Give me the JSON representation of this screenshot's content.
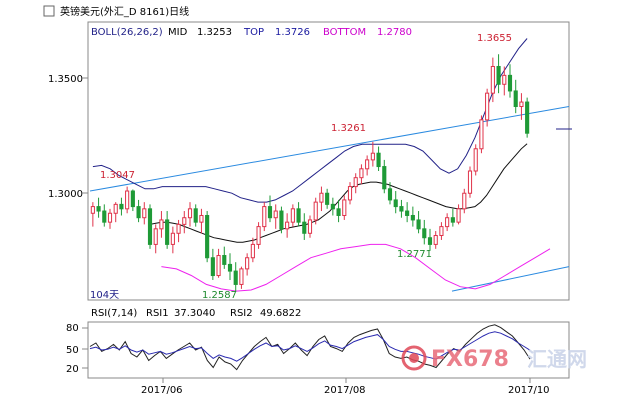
{
  "header": {
    "instrument": "英镑美元(外汇_D 8161)日线",
    "boll": {
      "label": "BOLL(26,26,2)",
      "mid_label": "MID",
      "mid": "1.3253",
      "top_label": "TOP",
      "top": "1.3726",
      "bottom_label": "BOTTOM",
      "bottom": "1.2780"
    }
  },
  "rsi_header": {
    "label": "RSI(7,14)",
    "rsi1_label": "RSI1",
    "rsi1": "37.3040",
    "rsi2_label": "RSI2",
    "rsi2": "49.6822"
  },
  "watermark": {
    "text": "FX678",
    "cn": "汇通网"
  },
  "annotations": {
    "a1": "1.3047",
    "a2": "1.3261",
    "a3": "1.3655",
    "a4": "1.2771",
    "a5": "1.2587",
    "days": "104天"
  },
  "colors": {
    "up": "#e0334a",
    "down": "#1f9a37",
    "mid": "#111111",
    "top": "#222288",
    "bottom": "#ee22ee",
    "trend": "#2a8ae0",
    "rsi1": "#222222",
    "rsi2": "#2a2ab0",
    "boll_title": "#222288",
    "top_text": "#1a1aa0",
    "bottom_text": "#cc00cc",
    "ann_red": "#cc2233",
    "ann_green": "#1f8a2e"
  },
  "chart_data": [
    {
      "type": "candlestick",
      "title": "英镑美元(外汇_D 8161)日线",
      "y_ticks": [
        "1.3500",
        "1.3000"
      ],
      "ylim": [
        1.255,
        1.38
      ],
      "x_tick_labels": [
        "2017/06",
        "2017/08",
        "2017/10"
      ],
      "ohlc": [
        [
          1.294,
          1.299,
          1.288,
          1.297
        ],
        [
          1.297,
          1.301,
          1.292,
          1.295
        ],
        [
          1.295,
          1.298,
          1.288,
          1.29
        ],
        [
          1.29,
          1.296,
          1.287,
          1.294
        ],
        [
          1.294,
          1.299,
          1.29,
          1.298
        ],
        [
          1.298,
          1.301,
          1.293,
          1.296
        ],
        [
          1.296,
          1.306,
          1.294,
          1.304
        ],
        [
          1.304,
          1.3047,
          1.295,
          1.297
        ],
        [
          1.297,
          1.3,
          1.29,
          1.292
        ],
        [
          1.292,
          1.299,
          1.289,
          1.296
        ],
        [
          1.296,
          1.298,
          1.278,
          1.28
        ],
        [
          1.28,
          1.289,
          1.276,
          1.287
        ],
        [
          1.287,
          1.295,
          1.283,
          1.291
        ],
        [
          1.291,
          1.295,
          1.278,
          1.28
        ],
        [
          1.28,
          1.288,
          1.276,
          1.285
        ],
        [
          1.285,
          1.291,
          1.281,
          1.289
        ],
        [
          1.289,
          1.295,
          1.285,
          1.292
        ],
        [
          1.292,
          1.299,
          1.288,
          1.296
        ],
        [
          1.296,
          1.298,
          1.288,
          1.29
        ],
        [
          1.29,
          1.296,
          1.285,
          1.293
        ],
        [
          1.293,
          1.295,
          1.272,
          1.274
        ],
        [
          1.274,
          1.278,
          1.264,
          1.266
        ],
        [
          1.266,
          1.278,
          1.265,
          1.275
        ],
        [
          1.275,
          1.279,
          1.269,
          1.271
        ],
        [
          1.271,
          1.276,
          1.264,
          1.268
        ],
        [
          1.268,
          1.272,
          1.2587,
          1.262
        ],
        [
          1.262,
          1.27,
          1.26,
          1.269
        ],
        [
          1.269,
          1.276,
          1.266,
          1.274
        ],
        [
          1.274,
          1.283,
          1.272,
          1.28
        ],
        [
          1.28,
          1.29,
          1.278,
          1.288
        ],
        [
          1.288,
          1.299,
          1.286,
          1.297
        ],
        [
          1.297,
          1.302,
          1.29,
          1.292
        ],
        [
          1.292,
          1.298,
          1.287,
          1.295
        ],
        [
          1.295,
          1.297,
          1.285,
          1.287
        ],
        [
          1.287,
          1.294,
          1.283,
          1.29
        ],
        [
          1.29,
          1.298,
          1.288,
          1.296
        ],
        [
          1.296,
          1.299,
          1.288,
          1.29
        ],
        [
          1.29,
          1.294,
          1.282,
          1.285
        ],
        [
          1.285,
          1.293,
          1.283,
          1.291
        ],
        [
          1.291,
          1.301,
          1.289,
          1.299
        ],
        [
          1.299,
          1.306,
          1.295,
          1.303
        ],
        [
          1.303,
          1.305,
          1.296,
          1.298
        ],
        [
          1.298,
          1.301,
          1.293,
          1.296
        ],
        [
          1.296,
          1.3,
          1.29,
          1.293
        ],
        [
          1.293,
          1.302,
          1.291,
          1.3
        ],
        [
          1.3,
          1.308,
          1.298,
          1.306
        ],
        [
          1.306,
          1.312,
          1.303,
          1.31
        ],
        [
          1.31,
          1.316,
          1.307,
          1.314
        ],
        [
          1.314,
          1.32,
          1.311,
          1.318
        ],
        [
          1.318,
          1.3261,
          1.315,
          1.321
        ],
        [
          1.321,
          1.324,
          1.313,
          1.315
        ],
        [
          1.315,
          1.318,
          1.303,
          1.305
        ],
        [
          1.305,
          1.308,
          1.298,
          1.3
        ],
        [
          1.3,
          1.304,
          1.294,
          1.297
        ],
        [
          1.297,
          1.3,
          1.292,
          1.295
        ],
        [
          1.295,
          1.299,
          1.29,
          1.293
        ],
        [
          1.293,
          1.297,
          1.288,
          1.291
        ],
        [
          1.291,
          1.295,
          1.285,
          1.287
        ],
        [
          1.287,
          1.291,
          1.28,
          1.283
        ],
        [
          1.283,
          1.287,
          1.2771,
          1.28
        ],
        [
          1.28,
          1.286,
          1.278,
          1.284
        ],
        [
          1.284,
          1.29,
          1.282,
          1.288
        ],
        [
          1.288,
          1.294,
          1.286,
          1.292
        ],
        [
          1.292,
          1.296,
          1.288,
          1.29
        ],
        [
          1.29,
          1.298,
          1.289,
          1.296
        ],
        [
          1.296,
          1.305,
          1.294,
          1.303
        ],
        [
          1.303,
          1.315,
          1.301,
          1.313
        ],
        [
          1.313,
          1.325,
          1.311,
          1.323
        ],
        [
          1.323,
          1.338,
          1.321,
          1.336
        ],
        [
          1.336,
          1.35,
          1.333,
          1.348
        ],
        [
          1.348,
          1.364,
          1.344,
          1.36
        ],
        [
          1.36,
          1.3655,
          1.348,
          1.352
        ],
        [
          1.352,
          1.36,
          1.347,
          1.356
        ],
        [
          1.356,
          1.361,
          1.346,
          1.349
        ],
        [
          1.349,
          1.354,
          1.339,
          1.342
        ],
        [
          1.342,
          1.348,
          1.336,
          1.344
        ],
        [
          1.344,
          1.346,
          1.328,
          1.33
        ]
      ],
      "mid": [
        1.289,
        1.2895,
        1.29,
        1.29,
        1.2895,
        1.289,
        1.288,
        1.287,
        1.286,
        1.285,
        1.284,
        1.283,
        1.2825,
        1.282,
        1.2815,
        1.281,
        1.281,
        1.2815,
        1.282,
        1.283,
        1.284,
        1.285,
        1.286,
        1.287,
        1.2875,
        1.288,
        1.2885,
        1.289,
        1.29,
        1.291,
        1.293,
        1.295,
        1.298,
        1.301,
        1.304,
        1.306,
        1.307,
        1.3075,
        1.308,
        1.308,
        1.3075,
        1.307,
        1.306,
        1.305,
        1.304,
        1.303,
        1.302,
        1.301,
        1.3,
        1.299,
        1.298,
        1.297,
        1.2965,
        1.296,
        1.296,
        1.2965,
        1.297,
        1.299,
        1.302,
        1.306,
        1.31,
        1.314,
        1.317,
        1.32,
        1.323,
        1.3253
      ],
      "top": [
        1.315,
        1.3155,
        1.314,
        1.311,
        1.309,
        1.307,
        1.305,
        1.305,
        1.306,
        1.306,
        1.306,
        1.306,
        1.306,
        1.306,
        1.305,
        1.304,
        1.303,
        1.301,
        1.3,
        1.299,
        1.299,
        1.3,
        1.302,
        1.304,
        1.307,
        1.31,
        1.313,
        1.316,
        1.319,
        1.322,
        1.324,
        1.325,
        1.325,
        1.325,
        1.325,
        1.325,
        1.325,
        1.324,
        1.322,
        1.318,
        1.314,
        1.312,
        1.314,
        1.32,
        1.328,
        1.338,
        1.348,
        1.356,
        1.362,
        1.368,
        1.3726
      ],
      "bottom": [
        1.27,
        1.269,
        1.266,
        1.262,
        1.26,
        1.259,
        1.2595,
        1.262,
        1.266,
        1.27,
        1.274,
        1.276,
        1.278,
        1.279,
        1.28,
        1.28,
        1.278,
        1.274,
        1.269,
        1.264,
        1.261,
        1.26,
        1.262,
        1.266,
        1.27,
        1.274,
        1.278
      ],
      "trend_upper": [
        [
          1.304,
          1.342
        ]
      ],
      "trend_lower": [
        [
          1.259,
          1.27
        ]
      ]
    },
    {
      "type": "line",
      "title": "RSI(7,14)",
      "y_ticks": [
        "80",
        "50",
        "20"
      ],
      "ylim": [
        10,
        90
      ],
      "series": [
        {
          "name": "RSI1",
          "values": [
            55,
            60,
            48,
            52,
            58,
            50,
            62,
            45,
            40,
            50,
            35,
            42,
            48,
            38,
            44,
            50,
            55,
            60,
            50,
            54,
            35,
            25,
            40,
            33,
            30,
            22,
            35,
            45,
            55,
            62,
            68,
            55,
            58,
            45,
            52,
            60,
            50,
            42,
            55,
            65,
            70,
            55,
            52,
            48,
            60,
            68,
            72,
            75,
            78,
            80,
            65,
            45,
            40,
            38,
            40,
            36,
            34,
            30,
            28,
            25,
            35,
            45,
            52,
            48,
            58,
            66,
            74,
            80,
            84,
            86,
            82,
            76,
            70,
            60,
            50,
            37
          ]
        },
        {
          "name": "RSI2",
          "values": [
            52,
            54,
            50,
            51,
            54,
            51,
            56,
            50,
            47,
            50,
            44,
            46,
            48,
            44,
            46,
            49,
            52,
            55,
            52,
            53,
            45,
            38,
            43,
            40,
            38,
            34,
            39,
            45,
            51,
            56,
            60,
            55,
            56,
            50,
            52,
            56,
            52,
            48,
            53,
            59,
            63,
            57,
            55,
            52,
            57,
            62,
            65,
            68,
            70,
            72,
            65,
            55,
            51,
            48,
            48,
            46,
            44,
            41,
            39,
            37,
            42,
            47,
            51,
            50,
            55,
            60,
            65,
            70,
            74,
            76,
            74,
            70,
            66,
            60,
            55,
            49.7
          ]
        }
      ]
    }
  ]
}
